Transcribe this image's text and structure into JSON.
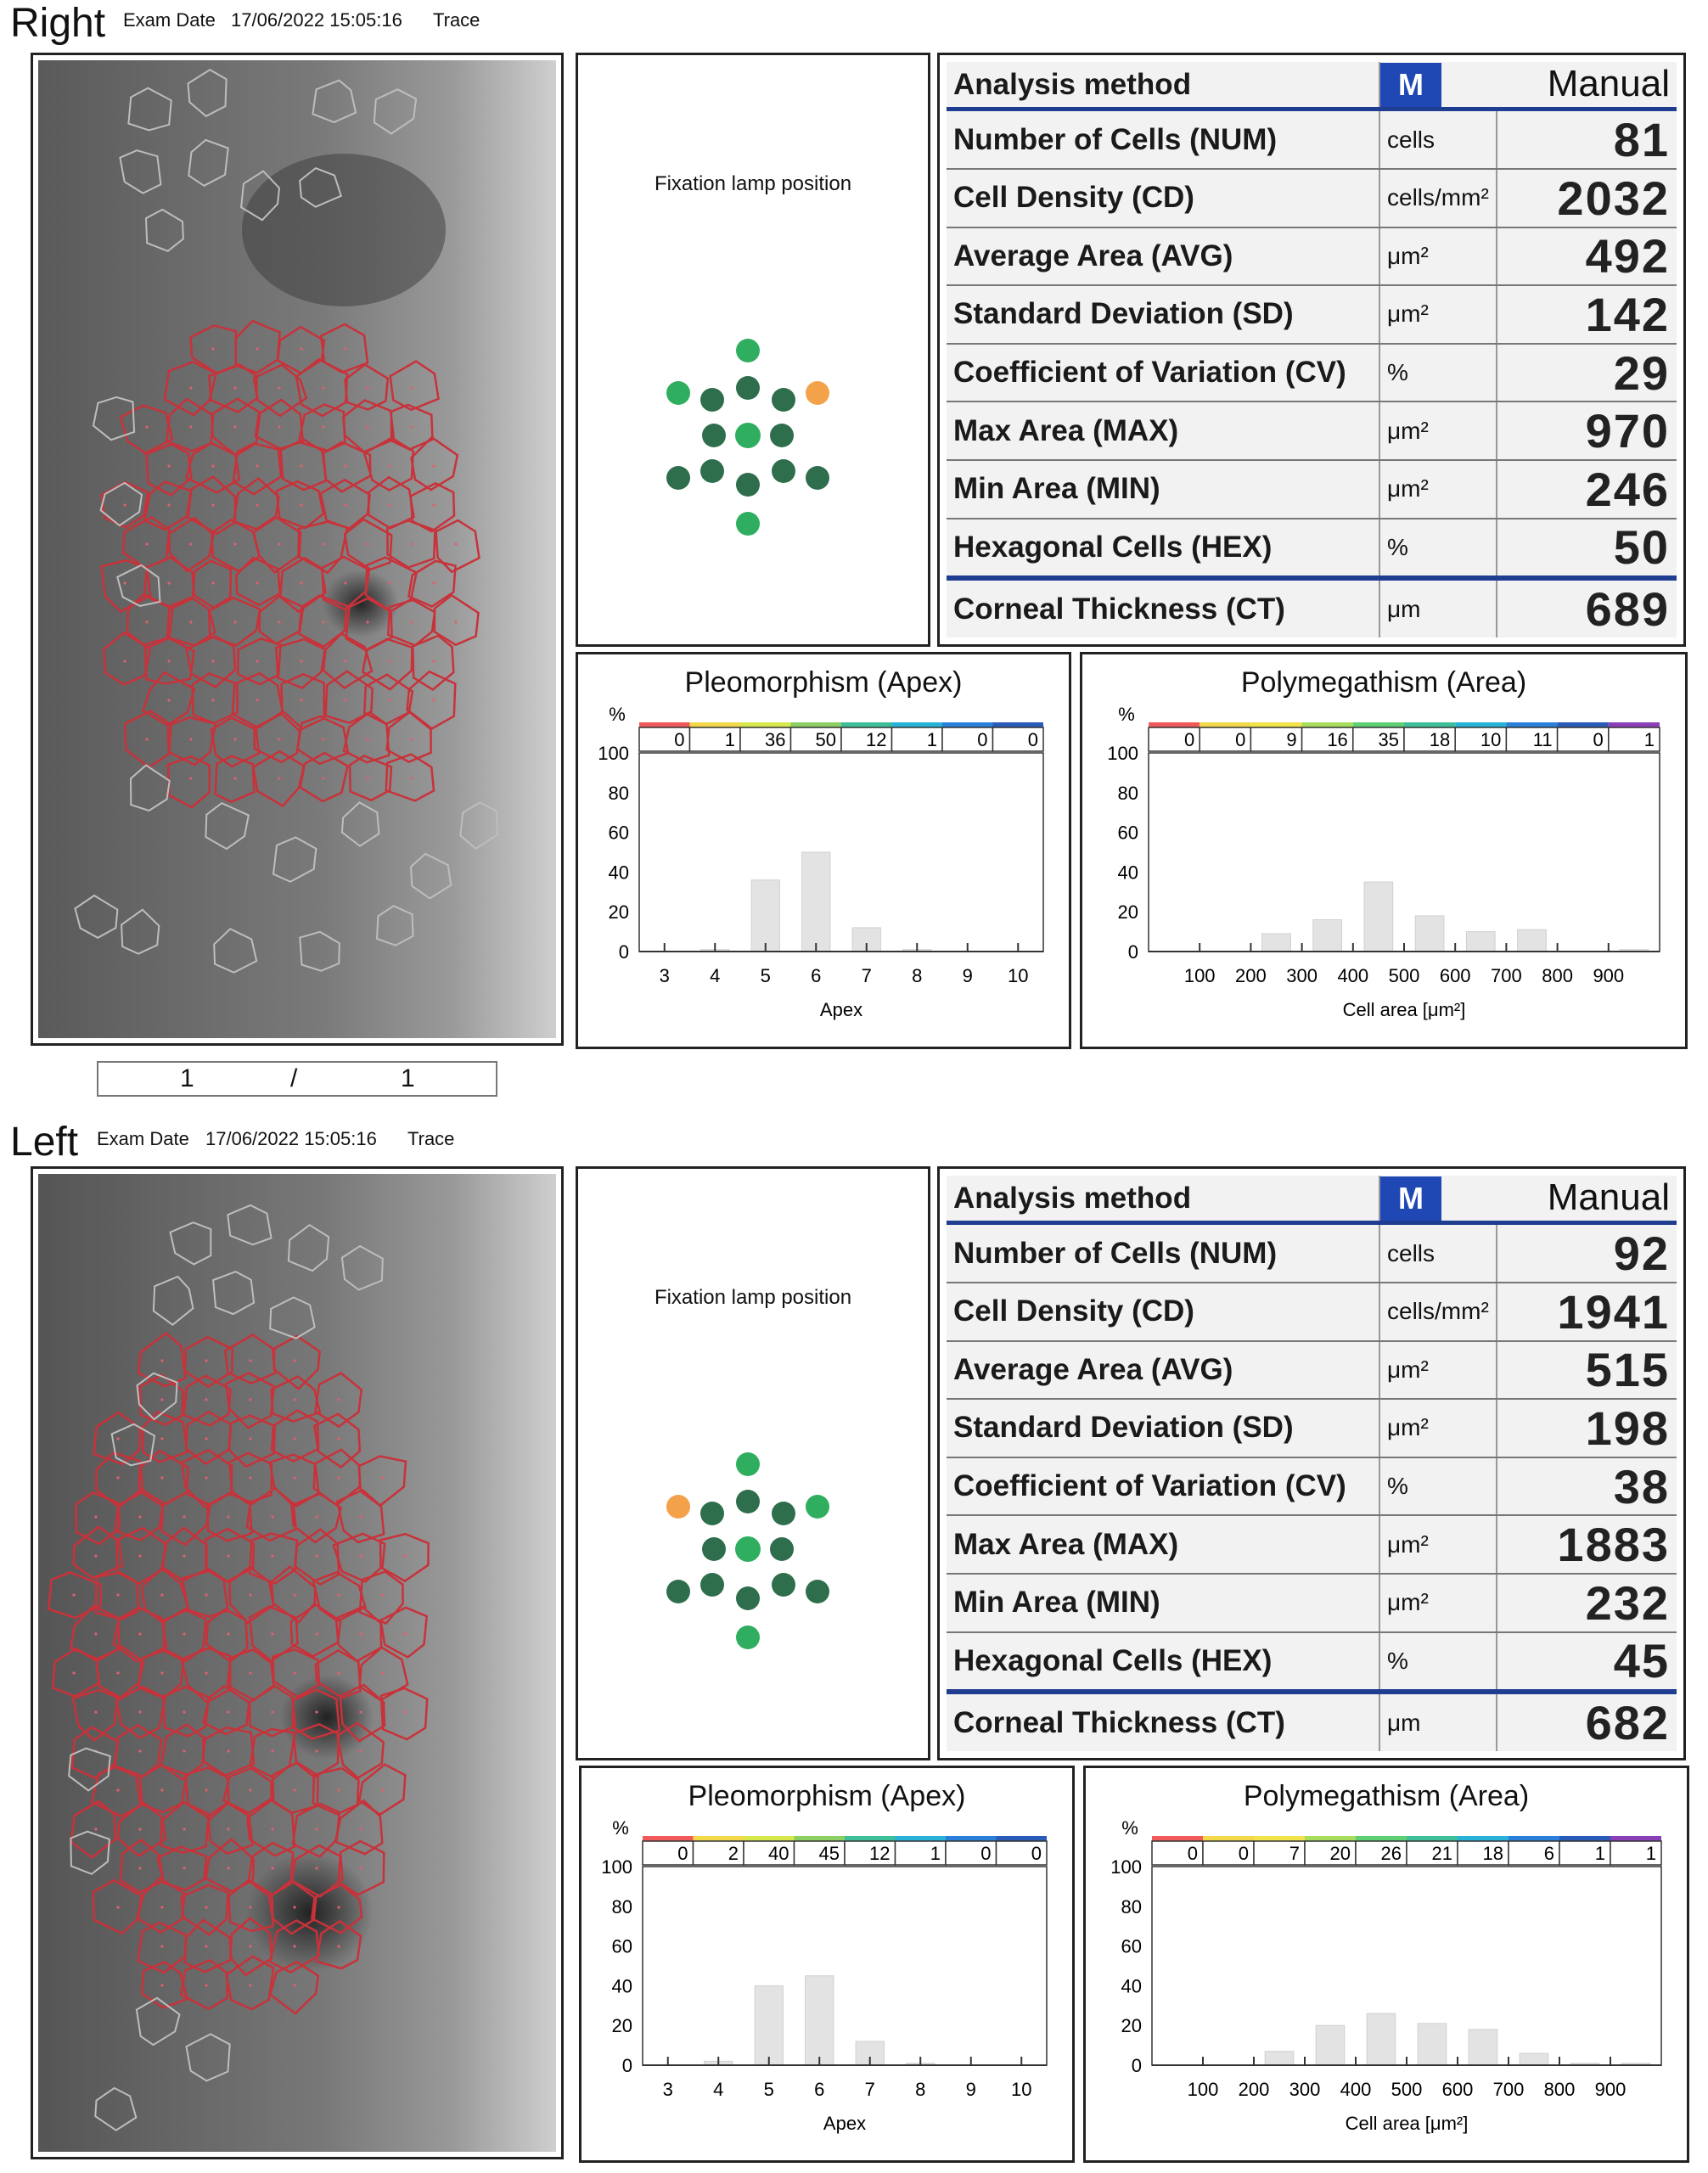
{
  "colors": {
    "fixation_dark": "#2e6e4c",
    "fixation_light": "#2fae5f",
    "fixation_active": "#f3a24a",
    "header_blue": "#1f3d91",
    "trace_red": "#c8323a",
    "trace_gray": "#bdbdbd"
  },
  "pager": {
    "current": "1",
    "separator": "/",
    "total": "1"
  },
  "eyes": [
    {
      "side": "Right",
      "exam_date_label": "Exam Date",
      "exam_date": "17/06/2022 15:05:16",
      "mode": "Trace",
      "fixation_label": "Fixation lamp position",
      "fixation_active": "upper-right",
      "analysis": {
        "method_label": "Analysis method",
        "method_badge": "M",
        "method_value": "Manual",
        "rows": [
          {
            "name": "Number of Cells (NUM)",
            "unit": "cells",
            "value": "81"
          },
          {
            "name": "Cell Density (CD)",
            "unit": "cells/mm²",
            "value": "2032"
          },
          {
            "name": "Average Area (AVG)",
            "unit": "μm²",
            "value": "492"
          },
          {
            "name": "Standard Deviation (SD)",
            "unit": "μm²",
            "value": "142"
          },
          {
            "name": "Coefficient of Variation (CV)",
            "unit": "%",
            "value": "29"
          },
          {
            "name": "Max Area (MAX)",
            "unit": "μm²",
            "value": "970"
          },
          {
            "name": "Min Area (MIN)",
            "unit": "μm²",
            "value": "246"
          },
          {
            "name": "Hexagonal Cells (HEX)",
            "unit": "%",
            "value": "50"
          },
          {
            "name": "Corneal Thickness (CT)",
            "unit": "μm",
            "value": "689"
          }
        ]
      },
      "pleomorphism": {
        "title": "Pleomorphism (Apex)",
        "xlabel": "Apex",
        "ylabel": "%",
        "ylim": [
          0,
          100
        ],
        "yticks": [
          0,
          20,
          40,
          60,
          80,
          100
        ],
        "categories": [
          "3",
          "4",
          "5",
          "6",
          "7",
          "8",
          "9",
          "10"
        ],
        "values": [
          0,
          1,
          36,
          50,
          12,
          1,
          0,
          0
        ],
        "color_strip": [
          "#f05a5a",
          "#f3d84a",
          "#d7e84a",
          "#8cd064",
          "#3dbf9a",
          "#27b2d8",
          "#2a7fd8",
          "#2a5bb8"
        ]
      },
      "polymegathism": {
        "title": "Polymegathism (Area)",
        "xlabel": "Cell area [μm²]",
        "ylabel": "%",
        "ylim": [
          0,
          100
        ],
        "yticks": [
          0,
          20,
          40,
          60,
          80,
          100
        ],
        "tick_labels": [
          "100",
          "200",
          "300",
          "400",
          "500",
          "600",
          "700",
          "800",
          "900"
        ],
        "values": [
          0,
          0,
          9,
          16,
          35,
          18,
          10,
          11,
          0,
          1
        ],
        "color_strip": [
          "#f05a5a",
          "#f3d84a",
          "#f3e34a",
          "#a8dc5c",
          "#5fcf74",
          "#3dbf9a",
          "#27b2d8",
          "#2a7fd8",
          "#2a5bb8",
          "#8a3fb8"
        ]
      }
    },
    {
      "side": "Left",
      "exam_date_label": "Exam Date",
      "exam_date": "17/06/2022 15:05:16",
      "mode": "Trace",
      "fixation_label": "Fixation lamp position",
      "fixation_active": "upper-left",
      "analysis": {
        "method_label": "Analysis method",
        "method_badge": "M",
        "method_value": "Manual",
        "rows": [
          {
            "name": "Number of Cells (NUM)",
            "unit": "cells",
            "value": "92"
          },
          {
            "name": "Cell Density (CD)",
            "unit": "cells/mm²",
            "value": "1941"
          },
          {
            "name": "Average Area (AVG)",
            "unit": "μm²",
            "value": "515"
          },
          {
            "name": "Standard Deviation (SD)",
            "unit": "μm²",
            "value": "198"
          },
          {
            "name": "Coefficient of Variation (CV)",
            "unit": "%",
            "value": "38"
          },
          {
            "name": "Max Area (MAX)",
            "unit": "μm²",
            "value": "1883"
          },
          {
            "name": "Min Area (MIN)",
            "unit": "μm²",
            "value": "232"
          },
          {
            "name": "Hexagonal Cells (HEX)",
            "unit": "%",
            "value": "45"
          },
          {
            "name": "Corneal Thickness (CT)",
            "unit": "μm",
            "value": "682"
          }
        ]
      },
      "pleomorphism": {
        "title": "Pleomorphism (Apex)",
        "xlabel": "Apex",
        "ylabel": "%",
        "ylim": [
          0,
          100
        ],
        "yticks": [
          0,
          20,
          40,
          60,
          80,
          100
        ],
        "categories": [
          "3",
          "4",
          "5",
          "6",
          "7",
          "8",
          "9",
          "10"
        ],
        "values": [
          0,
          2,
          40,
          45,
          12,
          1,
          0,
          0
        ],
        "color_strip": [
          "#f05a5a",
          "#f3d84a",
          "#d7e84a",
          "#8cd064",
          "#3dbf9a",
          "#27b2d8",
          "#2a7fd8",
          "#2a5bb8"
        ]
      },
      "polymegathism": {
        "title": "Polymegathism (Area)",
        "xlabel": "Cell area [μm²]",
        "ylabel": "%",
        "ylim": [
          0,
          100
        ],
        "yticks": [
          0,
          20,
          40,
          60,
          80,
          100
        ],
        "tick_labels": [
          "100",
          "200",
          "300",
          "400",
          "500",
          "600",
          "700",
          "800",
          "900"
        ],
        "values": [
          0,
          0,
          7,
          20,
          26,
          21,
          18,
          6,
          1,
          1
        ],
        "color_strip": [
          "#f05a5a",
          "#f3d84a",
          "#f3e34a",
          "#a8dc5c",
          "#5fcf74",
          "#3dbf9a",
          "#27b2d8",
          "#2a7fd8",
          "#2a5bb8",
          "#8a3fb8"
        ]
      }
    }
  ]
}
